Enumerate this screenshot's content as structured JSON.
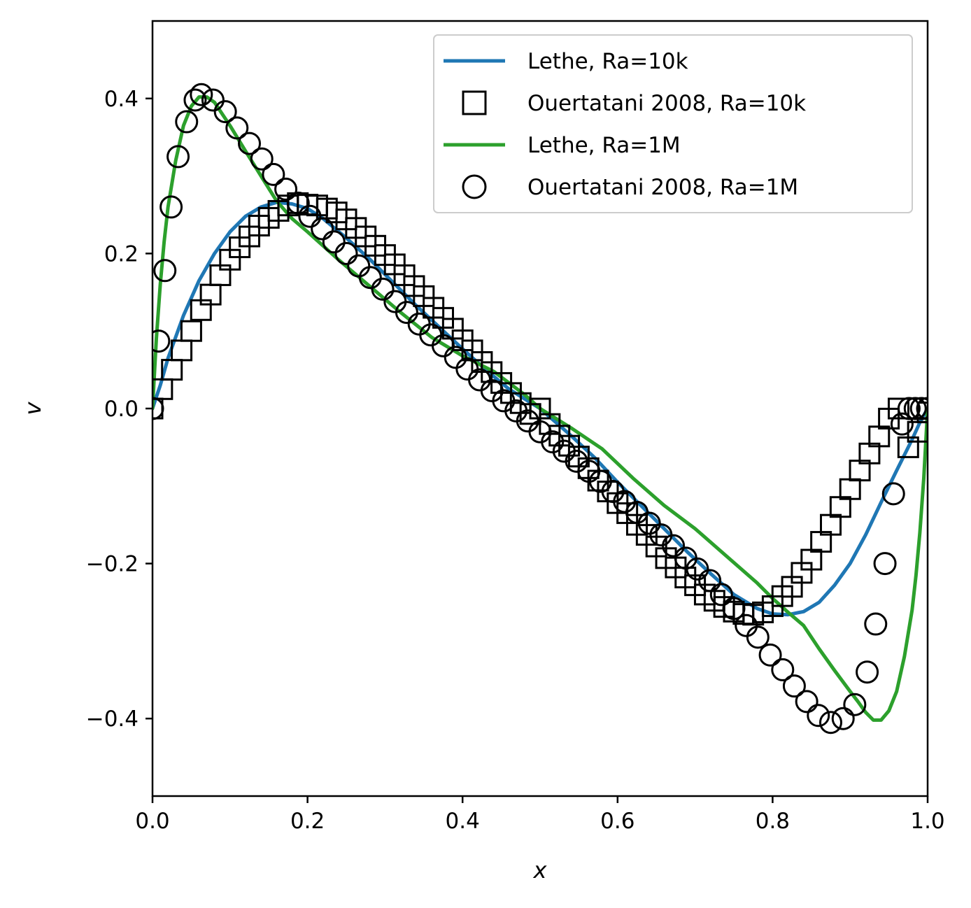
{
  "chart_data": {
    "type": "line",
    "title": "",
    "xlabel": "x",
    "ylabel": "v",
    "xlim": [
      0.0,
      1.0
    ],
    "ylim": [
      -0.5,
      0.5
    ],
    "xticks": [
      "0.0",
      "0.2",
      "0.4",
      "0.6",
      "0.8",
      "1.0"
    ],
    "yticks": [
      "−0.4",
      "−0.2",
      "0.0",
      "0.2",
      "0.4"
    ],
    "ytick_values": [
      -0.4,
      -0.2,
      0.0,
      0.2,
      0.4
    ],
    "xtick_values": [
      0.0,
      0.2,
      0.4,
      0.6,
      0.8,
      1.0
    ],
    "grid": false,
    "legend_position": "top-right",
    "legend": [
      {
        "label": "Lethe, Ra=10k",
        "kind": "line",
        "color": "#1f77b4"
      },
      {
        "label": "Ouertatani 2008, Ra=10k",
        "kind": "square",
        "color": "#000000"
      },
      {
        "label": "Lethe, Ra=1M",
        "kind": "line",
        "color": "#2ca02c"
      },
      {
        "label": "Ouertatani 2008, Ra=1M",
        "kind": "circle",
        "color": "#000000"
      }
    ],
    "series": [
      {
        "name": "Lethe, Ra=10k",
        "kind": "line",
        "color": "#1f77b4",
        "x": [
          0.0,
          0.01,
          0.02,
          0.04,
          0.06,
          0.08,
          0.1,
          0.12,
          0.14,
          0.16,
          0.18,
          0.2,
          0.22,
          0.25,
          0.28,
          0.31,
          0.34,
          0.37,
          0.4,
          0.43,
          0.46,
          0.5,
          0.54,
          0.57,
          0.6,
          0.63,
          0.66,
          0.69,
          0.72,
          0.75,
          0.78,
          0.8,
          0.82,
          0.84,
          0.86,
          0.88,
          0.9,
          0.92,
          0.94,
          0.96,
          0.98,
          0.99,
          1.0
        ],
        "y": [
          0.0,
          0.03,
          0.065,
          0.12,
          0.165,
          0.2,
          0.228,
          0.248,
          0.26,
          0.266,
          0.264,
          0.258,
          0.245,
          0.22,
          0.193,
          0.163,
          0.133,
          0.105,
          0.077,
          0.05,
          0.025,
          0.0,
          -0.035,
          -0.063,
          -0.095,
          -0.125,
          -0.155,
          -0.185,
          -0.213,
          -0.24,
          -0.258,
          -0.265,
          -0.266,
          -0.262,
          -0.25,
          -0.228,
          -0.2,
          -0.163,
          -0.121,
          -0.08,
          -0.04,
          -0.018,
          0.0
        ]
      },
      {
        "name": "Ouertatani 2008, Ra=10k",
        "kind": "square",
        "color": "#000000",
        "x": [
          0.0,
          0.0125,
          0.025,
          0.0375,
          0.05,
          0.0625,
          0.075,
          0.0875,
          0.1,
          0.1125,
          0.125,
          0.1375,
          0.15,
          0.1625,
          0.175,
          0.1875,
          0.2,
          0.2125,
          0.225,
          0.2375,
          0.25,
          0.2625,
          0.275,
          0.2875,
          0.3,
          0.3125,
          0.325,
          0.3375,
          0.35,
          0.3625,
          0.375,
          0.3875,
          0.4,
          0.4125,
          0.425,
          0.4375,
          0.45,
          0.4625,
          0.475,
          0.4875,
          0.5,
          0.5125,
          0.525,
          0.5375,
          0.55,
          0.5625,
          0.575,
          0.5875,
          0.6,
          0.6125,
          0.625,
          0.6375,
          0.65,
          0.6625,
          0.675,
          0.6875,
          0.7,
          0.7125,
          0.725,
          0.7375,
          0.75,
          0.7625,
          0.775,
          0.7875,
          0.8,
          0.8125,
          0.825,
          0.8375,
          0.85,
          0.8625,
          0.875,
          0.8875,
          0.9,
          0.9125,
          0.925,
          0.9375,
          0.95,
          0.9625,
          0.975,
          0.9875,
          1.0
        ],
        "y": [
          0.0,
          0.025,
          0.05,
          0.075,
          0.1,
          0.127,
          0.147,
          0.172,
          0.192,
          0.208,
          0.222,
          0.236,
          0.246,
          0.255,
          0.262,
          0.265,
          0.263,
          0.262,
          0.258,
          0.253,
          0.244,
          0.233,
          0.222,
          0.21,
          0.198,
          0.186,
          0.172,
          0.158,
          0.145,
          0.13,
          0.117,
          0.103,
          0.088,
          0.075,
          0.06,
          0.047,
          0.033,
          0.02,
          0.007,
          -0.007,
          0.0,
          -0.02,
          -0.035,
          -0.048,
          -0.062,
          -0.077,
          -0.093,
          -0.107,
          -0.122,
          -0.135,
          -0.15,
          -0.163,
          -0.178,
          -0.193,
          -0.205,
          -0.218,
          -0.228,
          -0.24,
          -0.248,
          -0.256,
          -0.262,
          -0.265,
          -0.266,
          -0.263,
          -0.255,
          -0.242,
          -0.23,
          -0.212,
          -0.195,
          -0.172,
          -0.15,
          -0.127,
          -0.104,
          -0.08,
          -0.058,
          -0.036,
          -0.013,
          0.0,
          -0.05,
          -0.03,
          -0.005
        ],
        "note_style": "marker"
      },
      {
        "name": "Lethe, Ra=1M",
        "kind": "line",
        "color": "#2ca02c",
        "x": [
          0.0,
          0.005,
          0.01,
          0.015,
          0.02,
          0.03,
          0.04,
          0.05,
          0.06,
          0.07,
          0.08,
          0.09,
          0.1,
          0.12,
          0.14,
          0.16,
          0.18,
          0.2,
          0.24,
          0.28,
          0.32,
          0.36,
          0.4,
          0.44,
          0.48,
          0.5,
          0.54,
          0.58,
          0.62,
          0.66,
          0.7,
          0.74,
          0.78,
          0.8,
          0.82,
          0.84,
          0.86,
          0.88,
          0.9,
          0.91,
          0.92,
          0.93,
          0.94,
          0.95,
          0.96,
          0.97,
          0.98,
          0.985,
          0.99,
          0.995,
          1.0
        ],
        "y": [
          0.0,
          0.09,
          0.16,
          0.215,
          0.26,
          0.32,
          0.365,
          0.39,
          0.402,
          0.402,
          0.395,
          0.38,
          0.365,
          0.332,
          0.3,
          0.268,
          0.245,
          0.228,
          0.192,
          0.158,
          0.124,
          0.092,
          0.068,
          0.048,
          0.018,
          0.0,
          -0.025,
          -0.052,
          -0.09,
          -0.125,
          -0.155,
          -0.19,
          -0.225,
          -0.245,
          -0.263,
          -0.28,
          -0.31,
          -0.338,
          -0.365,
          -0.378,
          -0.392,
          -0.402,
          -0.402,
          -0.39,
          -0.365,
          -0.32,
          -0.26,
          -0.215,
          -0.16,
          -0.09,
          0.0
        ]
      },
      {
        "name": "Ouertatani 2008, Ra=1M",
        "kind": "circle",
        "color": "#000000",
        "x": [
          0.0,
          0.008,
          0.016,
          0.024,
          0.033,
          0.044,
          0.055,
          0.063,
          0.078,
          0.094,
          0.109,
          0.125,
          0.141,
          0.156,
          0.172,
          0.188,
          0.203,
          0.219,
          0.234,
          0.25,
          0.266,
          0.281,
          0.297,
          0.313,
          0.328,
          0.344,
          0.359,
          0.375,
          0.391,
          0.406,
          0.422,
          0.438,
          0.453,
          0.469,
          0.484,
          0.5,
          0.516,
          0.531,
          0.547,
          0.563,
          0.578,
          0.594,
          0.609,
          0.625,
          0.641,
          0.656,
          0.672,
          0.688,
          0.703,
          0.719,
          0.734,
          0.75,
          0.766,
          0.781,
          0.797,
          0.813,
          0.828,
          0.844,
          0.859,
          0.875,
          0.891,
          0.906,
          0.922,
          0.933,
          0.945,
          0.956,
          0.967,
          0.976,
          0.984,
          0.992,
          1.0
        ],
        "y": [
          0.0,
          0.087,
          0.178,
          0.26,
          0.325,
          0.37,
          0.398,
          0.405,
          0.398,
          0.383,
          0.362,
          0.342,
          0.322,
          0.302,
          0.283,
          0.265,
          0.248,
          0.232,
          0.215,
          0.2,
          0.184,
          0.169,
          0.154,
          0.138,
          0.124,
          0.109,
          0.095,
          0.081,
          0.066,
          0.051,
          0.037,
          0.023,
          0.01,
          -0.003,
          -0.016,
          -0.03,
          -0.043,
          -0.055,
          -0.068,
          -0.081,
          -0.094,
          -0.107,
          -0.12,
          -0.134,
          -0.148,
          -0.163,
          -0.177,
          -0.193,
          -0.207,
          -0.222,
          -0.24,
          -0.258,
          -0.28,
          -0.295,
          -0.318,
          -0.337,
          -0.358,
          -0.378,
          -0.396,
          -0.405,
          -0.4,
          -0.382,
          -0.34,
          -0.278,
          -0.2,
          -0.11,
          -0.02,
          0.0,
          0.0,
          0.0,
          0.0
        ]
      }
    ]
  }
}
